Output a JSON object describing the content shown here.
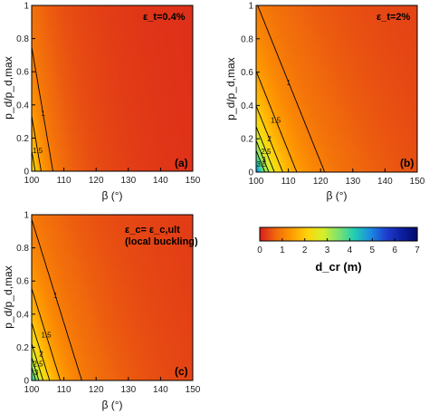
{
  "chart_data": [
    {
      "type": "heatmap",
      "panel_label": "(a)",
      "annotation": "ε_t=0.4%",
      "xlabel": "β (°)",
      "ylabel": "p_d/p_d,max",
      "xlim": [
        100,
        150
      ],
      "ylim": [
        0,
        1
      ],
      "xticks": [
        100,
        110,
        120,
        130,
        140,
        150
      ],
      "yticks": [
        0,
        0.2,
        0.4,
        0.6,
        0.8,
        1
      ],
      "contour_levels": [
        1,
        1.5,
        2,
        2.5,
        3,
        3.5,
        4
      ],
      "model": {
        "a": 2.5,
        "b": 1.1,
        "c": 0.8
      }
    },
    {
      "type": "heatmap",
      "panel_label": "(b)",
      "annotation": "ε_t=2%",
      "xlabel": "β (°)",
      "ylabel": "p_d/p_d,max",
      "xlim": [
        100,
        150
      ],
      "ylim": [
        0,
        1
      ],
      "xticks": [
        100,
        110,
        120,
        130,
        140,
        150
      ],
      "yticks": [
        0,
        0.2,
        0.4,
        0.6,
        0.8,
        1
      ],
      "contour_levels": [
        1,
        1.5,
        2,
        2.5,
        3,
        3.5
      ],
      "model": {
        "a": 5.5,
        "b": 2.6,
        "c": 0.8
      }
    },
    {
      "type": "heatmap",
      "panel_label": "(c)",
      "annotation": "ε_c= ε_c,ult",
      "annotation2": "(local buckling)",
      "xlabel": "β (°)",
      "ylabel": "p_d/p_d,max",
      "xlim": [
        100,
        150
      ],
      "ylim": [
        0,
        1
      ],
      "xticks": [
        100,
        110,
        120,
        130,
        140,
        150
      ],
      "yticks": [
        0,
        0.2,
        0.4,
        0.6,
        0.8,
        1
      ],
      "contour_levels": [
        1,
        1.5,
        2,
        2.5,
        3,
        3.5
      ],
      "model": {
        "a": 4.5,
        "b": 2.0,
        "c": 0.8
      }
    }
  ],
  "colorbar": {
    "label": "d_cr (m)",
    "min": 0,
    "max": 7,
    "ticks": [
      0,
      1,
      2,
      3,
      4,
      5,
      6,
      7
    ],
    "colormap": [
      "#d81d1d",
      "#f0680d",
      "#ff9a00",
      "#ffd20a",
      "#d6ef2a",
      "#7ee26e",
      "#22cdb2",
      "#1b8ee0",
      "#1f3fd0",
      "#0d1f9f",
      "#000a6e"
    ]
  }
}
